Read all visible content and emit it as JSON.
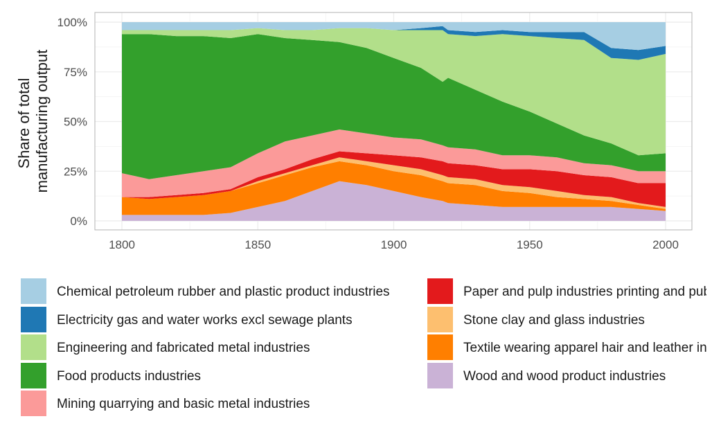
{
  "chart_data": {
    "type": "area",
    "stacked": true,
    "normalized": true,
    "title": "",
    "xlabel": "",
    "ylabel": "Share of total manufacturing output",
    "ylabel_lines": [
      "Share of total",
      "manufacturing output"
    ],
    "xlim": [
      1800,
      2000
    ],
    "ylim": [
      0,
      1
    ],
    "x_ticks": [
      1800,
      1850,
      1900,
      1950,
      2000
    ],
    "x_tick_labels": [
      "1800",
      "1850",
      "1900",
      "1950",
      "2000"
    ],
    "y_ticks": [
      0,
      0.25,
      0.5,
      0.75,
      1
    ],
    "y_tick_labels": [
      "0%",
      "25%",
      "50%",
      "75%",
      "100%"
    ],
    "grid": true,
    "legend_position": "bottom",
    "x": [
      1800,
      1810,
      1820,
      1830,
      1840,
      1850,
      1860,
      1870,
      1880,
      1890,
      1900,
      1910,
      1918,
      1920,
      1930,
      1940,
      1950,
      1960,
      1970,
      1980,
      1990,
      2000
    ],
    "series": [
      {
        "name": "Wood and wood product industries",
        "color": "#cab2d6",
        "values": [
          0.03,
          0.03,
          0.03,
          0.03,
          0.04,
          0.07,
          0.1,
          0.15,
          0.2,
          0.18,
          0.15,
          0.12,
          0.1,
          0.09,
          0.08,
          0.07,
          0.07,
          0.07,
          0.07,
          0.07,
          0.06,
          0.05
        ]
      },
      {
        "name": "Textile wearing apparel hair and leather industries",
        "color": "#ff7f00",
        "values": [
          0.09,
          0.08,
          0.09,
          0.1,
          0.11,
          0.12,
          0.13,
          0.12,
          0.1,
          0.1,
          0.1,
          0.11,
          0.1,
          0.1,
          0.1,
          0.08,
          0.07,
          0.05,
          0.04,
          0.03,
          0.02,
          0.01
        ]
      },
      {
        "name": "Stone clay and glass industries",
        "color": "#fdbf6f",
        "values": [
          0.0,
          0.0,
          0.0,
          0.0,
          0.0,
          0.01,
          0.01,
          0.01,
          0.02,
          0.02,
          0.03,
          0.03,
          0.03,
          0.03,
          0.03,
          0.03,
          0.03,
          0.03,
          0.02,
          0.02,
          0.01,
          0.01
        ]
      },
      {
        "name": "Paper and pulp industries printing and publishing",
        "color": "#e31a1c",
        "values": [
          0.0,
          0.01,
          0.01,
          0.01,
          0.01,
          0.02,
          0.02,
          0.03,
          0.03,
          0.04,
          0.05,
          0.06,
          0.07,
          0.07,
          0.07,
          0.08,
          0.09,
          0.1,
          0.1,
          0.1,
          0.1,
          0.12
        ]
      },
      {
        "name": "Mining quarrying and basic metal industries",
        "color": "#fb9a99",
        "values": [
          0.12,
          0.09,
          0.1,
          0.11,
          0.11,
          0.12,
          0.14,
          0.12,
          0.11,
          0.1,
          0.09,
          0.09,
          0.08,
          0.08,
          0.08,
          0.07,
          0.07,
          0.07,
          0.06,
          0.06,
          0.06,
          0.06
        ]
      },
      {
        "name": "Food products industries",
        "color": "#33a02c",
        "values": [
          0.7,
          0.73,
          0.7,
          0.68,
          0.65,
          0.6,
          0.52,
          0.48,
          0.44,
          0.43,
          0.4,
          0.36,
          0.32,
          0.35,
          0.3,
          0.27,
          0.22,
          0.17,
          0.14,
          0.11,
          0.08,
          0.09
        ]
      },
      {
        "name": "Engineering and fabricated metal industries",
        "color": "#b2df8a",
        "values": [
          0.02,
          0.02,
          0.03,
          0.03,
          0.04,
          0.03,
          0.04,
          0.05,
          0.07,
          0.1,
          0.14,
          0.19,
          0.26,
          0.22,
          0.27,
          0.34,
          0.38,
          0.43,
          0.48,
          0.43,
          0.48,
          0.5
        ]
      },
      {
        "name": "Electricity gas and water works excl sewage plants",
        "color": "#1f78b4",
        "values": [
          0.0,
          0.0,
          0.0,
          0.0,
          0.0,
          0.0,
          0.0,
          0.0,
          0.0,
          0.0,
          0.0,
          0.01,
          0.02,
          0.02,
          0.02,
          0.02,
          0.02,
          0.03,
          0.04,
          0.05,
          0.05,
          0.04
        ]
      },
      {
        "name": "Chemical petroleum rubber and plastic product industries",
        "color": "#a6cee3",
        "values": [
          0.04,
          0.04,
          0.04,
          0.04,
          0.04,
          0.03,
          0.04,
          0.04,
          0.03,
          0.03,
          0.04,
          0.03,
          0.02,
          0.04,
          0.05,
          0.04,
          0.05,
          0.05,
          0.05,
          0.13,
          0.14,
          0.12
        ]
      }
    ]
  },
  "legend": {
    "items": [
      {
        "label": "Chemical petroleum rubber and plastic product industries",
        "color": "#a6cee3"
      },
      {
        "label": "Electricity gas and water works excl sewage plants",
        "color": "#1f78b4"
      },
      {
        "label": "Engineering and fabricated metal industries",
        "color": "#b2df8a"
      },
      {
        "label": "Food products industries",
        "color": "#33a02c"
      },
      {
        "label": "Mining quarrying and basic metal industries",
        "color": "#fb9a99"
      },
      {
        "label": "Paper and pulp industries printing and publishing",
        "color": "#e31a1c"
      },
      {
        "label": "Stone clay and glass industries",
        "color": "#fdbf6f"
      },
      {
        "label": "Textile wearing apparel hair and leather industries",
        "color": "#ff7f00"
      },
      {
        "label": "Wood and wood product industries",
        "color": "#cab2d6"
      }
    ]
  }
}
